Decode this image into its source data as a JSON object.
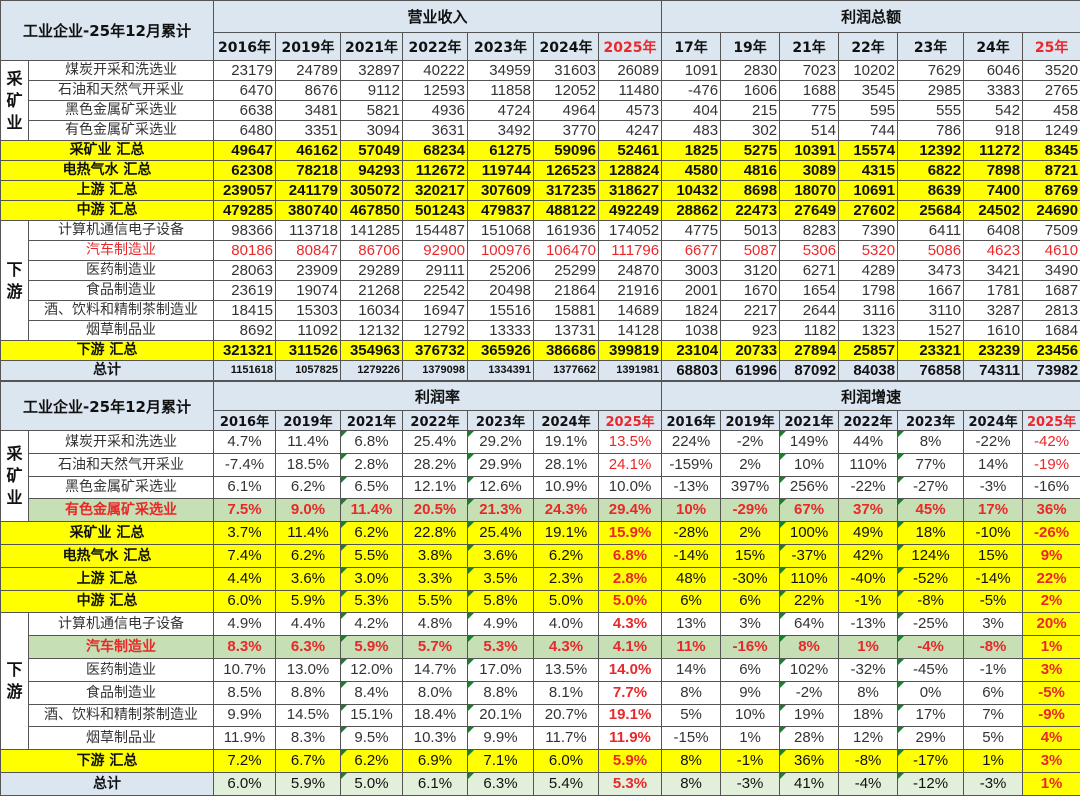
{
  "top": {
    "corner": "工业企业-25年12月累计",
    "group1": "营业收入",
    "group2": "利润总额",
    "years1": [
      "2016年",
      "2019年",
      "2021年",
      "2022年",
      "2023年",
      "2024年",
      "2025年"
    ],
    "years2": [
      "17年",
      "19年",
      "21年",
      "22年",
      "23年",
      "24年",
      "25年"
    ],
    "rows": [
      {
        "group": "采矿业",
        "name": "煤炭开采和洗选业",
        "v": [
          "23179",
          "24789",
          "32897",
          "40222",
          "34959",
          "31603",
          "26089",
          "1091",
          "2830",
          "7023",
          "10202",
          "7629",
          "6046",
          "3520"
        ]
      },
      {
        "name": "石油和天然气开采业",
        "v": [
          "6470",
          "8676",
          "9112",
          "12593",
          "11858",
          "12052",
          "11480",
          "-476",
          "1606",
          "1688",
          "3545",
          "2985",
          "3383",
          "2765"
        ]
      },
      {
        "name": "黑色金属矿采选业",
        "v": [
          "6638",
          "3481",
          "5821",
          "4936",
          "4724",
          "4964",
          "4573",
          "404",
          "215",
          "775",
          "595",
          "555",
          "542",
          "458"
        ]
      },
      {
        "name": "有色金属矿采选业",
        "v": [
          "6480",
          "3351",
          "3094",
          "3631",
          "3492",
          "3770",
          "4247",
          "483",
          "302",
          "514",
          "744",
          "786",
          "918",
          "1249"
        ]
      },
      {
        "name": "采矿业 汇总",
        "v": [
          "49647",
          "46162",
          "57049",
          "68234",
          "61275",
          "59096",
          "52461",
          "1825",
          "5275",
          "10391",
          "15574",
          "12392",
          "11272",
          "8345"
        ]
      },
      {
        "name": "电热气水 汇总",
        "v": [
          "62308",
          "78218",
          "94293",
          "112672",
          "119744",
          "126523",
          "128824",
          "4580",
          "4816",
          "3089",
          "4315",
          "6822",
          "7898",
          "8721"
        ]
      },
      {
        "name": "上游 汇总",
        "v": [
          "239057",
          "241179",
          "305072",
          "320217",
          "307609",
          "317235",
          "318627",
          "10432",
          "8698",
          "18070",
          "10691",
          "8639",
          "7400",
          "8769"
        ]
      },
      {
        "name": "中游 汇总",
        "v": [
          "479285",
          "380740",
          "467850",
          "501243",
          "479837",
          "488122",
          "492249",
          "28862",
          "22473",
          "27649",
          "27602",
          "25684",
          "24502",
          "24690"
        ]
      },
      {
        "group": "下游",
        "name": "计算机通信电子设备",
        "v": [
          "98366",
          "113718",
          "141285",
          "154487",
          "151068",
          "161936",
          "174052",
          "4775",
          "5013",
          "8283",
          "7390",
          "6411",
          "6408",
          "7509"
        ]
      },
      {
        "name": "汽车制造业",
        "v": [
          "80186",
          "80847",
          "86706",
          "92900",
          "100976",
          "106470",
          "111796",
          "6677",
          "5087",
          "5306",
          "5320",
          "5086",
          "4623",
          "4610"
        ]
      },
      {
        "name": "医药制造业",
        "v": [
          "28063",
          "23909",
          "29289",
          "29111",
          "25206",
          "25299",
          "24870",
          "3003",
          "3120",
          "6271",
          "4289",
          "3473",
          "3421",
          "3490"
        ]
      },
      {
        "name": "食品制造业",
        "v": [
          "23619",
          "19074",
          "21268",
          "22542",
          "20498",
          "21864",
          "21916",
          "2001",
          "1670",
          "1654",
          "1798",
          "1667",
          "1781",
          "1687"
        ]
      },
      {
        "name": "酒、饮料和精制茶制造业",
        "v": [
          "18415",
          "15303",
          "16034",
          "16947",
          "15516",
          "15881",
          "14689",
          "1824",
          "2217",
          "2644",
          "3116",
          "3110",
          "3287",
          "2813"
        ]
      },
      {
        "name": "烟草制品业",
        "v": [
          "8692",
          "11092",
          "12132",
          "12792",
          "13333",
          "13731",
          "14128",
          "1038",
          "923",
          "1182",
          "1323",
          "1527",
          "1610",
          "1684"
        ]
      },
      {
        "name": "下游 汇总",
        "v": [
          "321321",
          "311526",
          "354963",
          "376732",
          "365926",
          "386686",
          "399819",
          "23104",
          "20733",
          "27894",
          "25857",
          "23321",
          "23239",
          "23456"
        ]
      },
      {
        "name": "总计",
        "v": [
          "1151618",
          "1057825",
          "1279226",
          "1379098",
          "1334391",
          "1377662",
          "1391981",
          "68803",
          "61996",
          "87092",
          "84038",
          "76858",
          "74311",
          "73982"
        ]
      }
    ]
  },
  "bottom": {
    "corner": "工业企业-25年12月累计",
    "group1": "利润率",
    "group2": "利润增速",
    "years1": [
      "2016年",
      "2019年",
      "2021年",
      "2022年",
      "2023年",
      "2024年",
      "2025年"
    ],
    "years2": [
      "2016年",
      "2019年",
      "2021年",
      "2022年",
      "2023年",
      "2024年",
      "2025年"
    ],
    "rows": [
      {
        "group": "采矿业",
        "name": "煤炭开采和洗选业",
        "v": [
          "4.7%",
          "11.4%",
          "6.8%",
          "25.4%",
          "29.2%",
          "19.1%",
          "13.5%",
          "224%",
          "-2%",
          "149%",
          "44%",
          "8%",
          "-22%",
          "-42%"
        ]
      },
      {
        "name": "石油和天然气开采业",
        "v": [
          "-7.4%",
          "18.5%",
          "2.8%",
          "28.2%",
          "29.9%",
          "28.1%",
          "24.1%",
          "-159%",
          "2%",
          "10%",
          "110%",
          "77%",
          "14%",
          "-19%"
        ]
      },
      {
        "name": "黑色金属矿采选业",
        "v": [
          "6.1%",
          "6.2%",
          "6.5%",
          "12.1%",
          "12.6%",
          "10.9%",
          "10.0%",
          "-13%",
          "397%",
          "256%",
          "-22%",
          "-27%",
          "-3%",
          "-16%"
        ]
      },
      {
        "name": "有色金属矿采选业",
        "v": [
          "7.5%",
          "9.0%",
          "11.4%",
          "20.5%",
          "21.3%",
          "24.3%",
          "29.4%",
          "10%",
          "-29%",
          "67%",
          "37%",
          "45%",
          "17%",
          "36%"
        ]
      },
      {
        "name": "采矿业 汇总",
        "v": [
          "3.7%",
          "11.4%",
          "6.2%",
          "22.8%",
          "25.4%",
          "19.1%",
          "15.9%",
          "-28%",
          "2%",
          "100%",
          "49%",
          "18%",
          "-10%",
          "-26%"
        ]
      },
      {
        "name": "电热气水 汇总",
        "v": [
          "7.4%",
          "6.2%",
          "5.5%",
          "3.8%",
          "3.6%",
          "6.2%",
          "6.8%",
          "-14%",
          "15%",
          "-37%",
          "42%",
          "124%",
          "15%",
          "9%"
        ]
      },
      {
        "name": "上游 汇总",
        "v": [
          "4.4%",
          "3.6%",
          "3.0%",
          "3.3%",
          "3.5%",
          "2.3%",
          "2.8%",
          "48%",
          "-30%",
          "110%",
          "-40%",
          "-52%",
          "-14%",
          "22%"
        ]
      },
      {
        "name": "中游 汇总",
        "v": [
          "6.0%",
          "5.9%",
          "5.3%",
          "5.5%",
          "5.8%",
          "5.0%",
          "5.0%",
          "6%",
          "6%",
          "22%",
          "-1%",
          "-8%",
          "-5%",
          "2%"
        ]
      },
      {
        "group": "下游",
        "name": "计算机通信电子设备",
        "v": [
          "4.9%",
          "4.4%",
          "4.2%",
          "4.8%",
          "4.9%",
          "4.0%",
          "4.3%",
          "13%",
          "3%",
          "64%",
          "-13%",
          "-25%",
          "3%",
          "20%"
        ]
      },
      {
        "name": "汽车制造业",
        "v": [
          "8.3%",
          "6.3%",
          "5.9%",
          "5.7%",
          "5.3%",
          "4.3%",
          "4.1%",
          "11%",
          "-16%",
          "8%",
          "1%",
          "-4%",
          "-8%",
          "1%"
        ]
      },
      {
        "name": "医药制造业",
        "v": [
          "10.7%",
          "13.0%",
          "12.0%",
          "14.7%",
          "17.0%",
          "13.5%",
          "14.0%",
          "14%",
          "6%",
          "102%",
          "-32%",
          "-45%",
          "-1%",
          "3%"
        ]
      },
      {
        "name": "食品制造业",
        "v": [
          "8.5%",
          "8.8%",
          "8.4%",
          "8.0%",
          "8.8%",
          "8.1%",
          "7.7%",
          "8%",
          "9%",
          "-2%",
          "8%",
          "0%",
          "6%",
          "-5%"
        ]
      },
      {
        "name": "酒、饮料和精制茶制造业",
        "v": [
          "9.9%",
          "14.5%",
          "15.1%",
          "18.4%",
          "20.1%",
          "20.7%",
          "19.1%",
          "5%",
          "10%",
          "19%",
          "18%",
          "17%",
          "7%",
          "-9%"
        ]
      },
      {
        "name": "烟草制品业",
        "v": [
          "11.9%",
          "8.3%",
          "9.5%",
          "10.3%",
          "9.9%",
          "11.7%",
          "11.9%",
          "-15%",
          "1%",
          "28%",
          "12%",
          "29%",
          "5%",
          "4%"
        ]
      },
      {
        "name": "下游 汇总",
        "v": [
          "7.2%",
          "6.7%",
          "6.2%",
          "6.9%",
          "7.1%",
          "6.0%",
          "5.9%",
          "8%",
          "-1%",
          "36%",
          "-8%",
          "-17%",
          "1%",
          "3%"
        ]
      },
      {
        "name": "总计",
        "v": [
          "6.0%",
          "5.9%",
          "5.0%",
          "6.1%",
          "6.3%",
          "5.4%",
          "5.3%",
          "8%",
          "-3%",
          "41%",
          "-4%",
          "-12%",
          "-3%",
          "1%"
        ]
      }
    ]
  }
}
